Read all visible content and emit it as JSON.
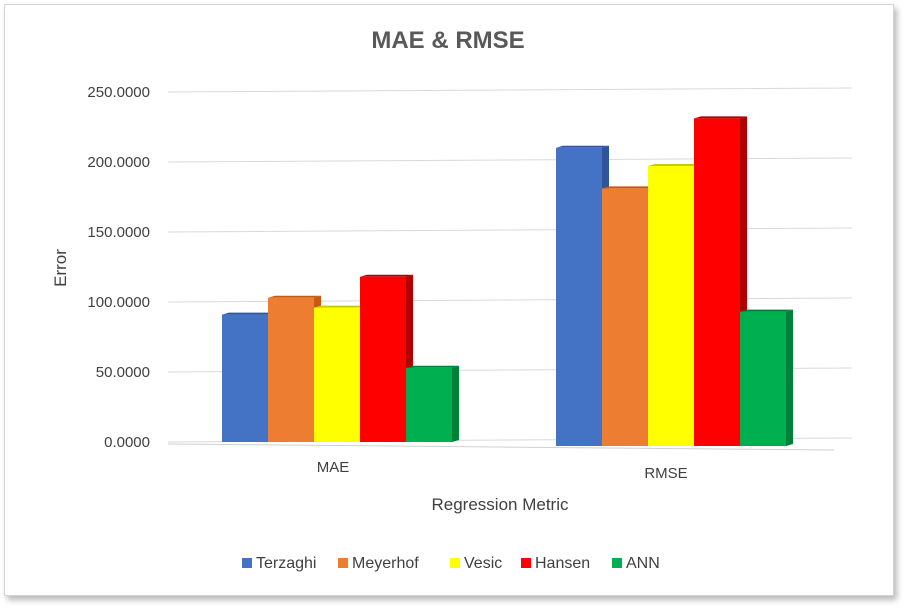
{
  "chart_data": {
    "type": "bar",
    "title": "MAE & RMSE",
    "xlabel": "Regression Metric",
    "ylabel": "Error",
    "categories": [
      "MAE",
      "RMSE"
    ],
    "ylim": [
      0,
      250
    ],
    "yticks": [
      "0.0000",
      "50.0000",
      "100.0000",
      "150.0000",
      "200.0000",
      "250.0000"
    ],
    "grid": true,
    "legend": "bottom",
    "series": [
      {
        "name": "Terzaghi",
        "values": [
          91,
          213
        ],
        "color": "#4472C4",
        "side_color": "#2F5597"
      },
      {
        "name": "Meyerhof",
        "values": [
          103,
          184
        ],
        "color": "#ED7D31",
        "side_color": "#C55A11"
      },
      {
        "name": "Vesic",
        "values": [
          96,
          200
        ],
        "color": "#FFFF00",
        "side_color": "#C9C900"
      },
      {
        "name": "Hansen",
        "values": [
          118,
          234
        ],
        "color": "#FF0000",
        "side_color": "#B00000"
      },
      {
        "name": "ANN",
        "values": [
          53,
          96
        ],
        "color": "#00B050",
        "side_color": "#00803A"
      }
    ]
  }
}
